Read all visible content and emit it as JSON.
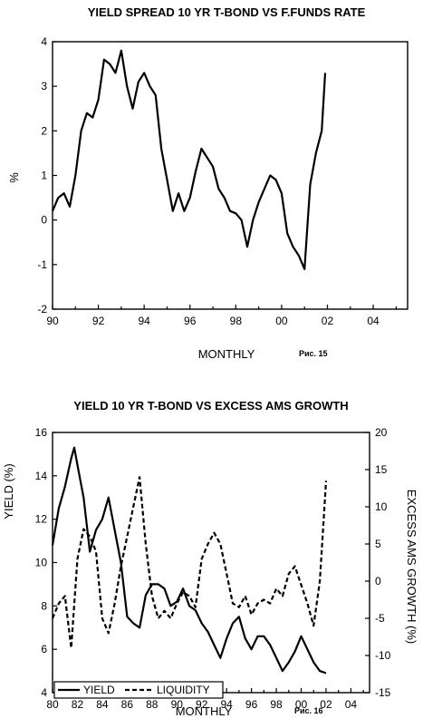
{
  "chart_data": [
    {
      "type": "line",
      "title": "YIELD SPREAD 10 YR T-BOND VS F.FUNDS RATE",
      "xlabel": "MONTHLY",
      "ylabel": "%",
      "figure_label": "Рис. 15",
      "xlim": [
        1990,
        2005.5
      ],
      "ylim": [
        -2,
        4
      ],
      "x_ticks": [
        "90",
        "92",
        "94",
        "96",
        "98",
        "00",
        "02",
        "04"
      ],
      "y_ticks": [
        "-2",
        "-1",
        "0",
        "1",
        "2",
        "3",
        "4"
      ],
      "grid": false,
      "series": [
        {
          "style": "solid",
          "x": [
            1990.0,
            1990.25,
            1990.5,
            1990.75,
            1991.0,
            1991.25,
            1991.5,
            1991.75,
            1992.0,
            1992.25,
            1992.5,
            1992.75,
            1993.0,
            1993.25,
            1993.5,
            1993.75,
            1994.0,
            1994.25,
            1994.5,
            1994.75,
            1995.0,
            1995.25,
            1995.5,
            1995.75,
            1996.0,
            1996.25,
            1996.5,
            1996.75,
            1997.0,
            1997.25,
            1997.5,
            1997.75,
            1998.0,
            1998.25,
            1998.5,
            1998.75,
            1999.0,
            1999.25,
            1999.5,
            1999.75,
            2000.0,
            2000.25,
            2000.5,
            2000.75,
            2001.0,
            2001.25,
            2001.5,
            2001.75,
            2001.9
          ],
          "y": [
            0.2,
            0.5,
            0.6,
            0.3,
            1.0,
            2.0,
            2.4,
            2.3,
            2.7,
            3.6,
            3.5,
            3.3,
            3.8,
            3.0,
            2.5,
            3.1,
            3.3,
            3.0,
            2.8,
            1.6,
            0.9,
            0.2,
            0.6,
            0.2,
            0.5,
            1.1,
            1.6,
            1.4,
            1.2,
            0.7,
            0.5,
            0.2,
            0.15,
            0.0,
            -0.6,
            0.0,
            0.4,
            0.7,
            1.0,
            0.9,
            0.6,
            -0.3,
            -0.6,
            -0.8,
            -1.1,
            0.8,
            1.5,
            2.0,
            3.3
          ]
        }
      ]
    },
    {
      "type": "line",
      "title": "YIELD 10 YR T-BOND VS EXCESS AMS GROWTH",
      "xlabel": "MONTHLY",
      "ylabel": "YIELD (%)",
      "y2label": "EXCESS AMS GROWTH (%)",
      "figure_label": "Рис. 16",
      "xlim": [
        1980,
        2005.5
      ],
      "ylim": [
        4,
        16
      ],
      "y2lim": [
        -15,
        20
      ],
      "x_ticks": [
        "80",
        "82",
        "84",
        "86",
        "88",
        "90",
        "92",
        "94",
        "96",
        "98",
        "00",
        "02",
        "04"
      ],
      "y_ticks": [
        "4",
        "6",
        "8",
        "10",
        "12",
        "14",
        "16"
      ],
      "y2_ticks": [
        "-15",
        "-10",
        "-5",
        "0",
        "5",
        "10",
        "15",
        "20"
      ],
      "legend": "bottom-left",
      "grid": false,
      "series": [
        {
          "name": "YIELD",
          "style": "solid",
          "axis": "left",
          "x": [
            1980.0,
            1980.5,
            1981.0,
            1981.5,
            1981.75,
            1982.0,
            1982.5,
            1983.0,
            1983.5,
            1984.0,
            1984.5,
            1985.0,
            1985.5,
            1986.0,
            1986.5,
            1987.0,
            1987.5,
            1988.0,
            1988.5,
            1989.0,
            1989.5,
            1990.0,
            1990.5,
            1991.0,
            1991.5,
            1992.0,
            1992.5,
            1993.0,
            1993.5,
            1994.0,
            1994.5,
            1995.0,
            1995.5,
            1996.0,
            1996.5,
            1997.0,
            1997.5,
            1998.0,
            1998.5,
            1999.0,
            1999.5,
            2000.0,
            2000.5,
            2001.0,
            2001.5,
            2002.0
          ],
          "y": [
            10.8,
            12.5,
            13.5,
            14.8,
            15.3,
            14.5,
            13.0,
            10.5,
            11.5,
            12.0,
            13.0,
            11.5,
            10.0,
            7.5,
            7.2,
            7.0,
            8.5,
            9.0,
            9.0,
            8.8,
            8.0,
            8.2,
            8.8,
            8.0,
            7.8,
            7.2,
            6.8,
            6.2,
            5.6,
            6.5,
            7.2,
            7.5,
            6.5,
            6.0,
            6.6,
            6.6,
            6.2,
            5.6,
            5.0,
            5.4,
            5.9,
            6.6,
            6.0,
            5.4,
            5.0,
            4.9
          ]
        },
        {
          "name": "LIQUIDITY",
          "style": "dashed",
          "axis": "right",
          "x": [
            1980.0,
            1980.5,
            1981.0,
            1981.5,
            1982.0,
            1982.5,
            1983.0,
            1983.5,
            1984.0,
            1984.5,
            1985.0,
            1985.5,
            1986.0,
            1986.5,
            1987.0,
            1987.5,
            1988.0,
            1988.5,
            1989.0,
            1989.5,
            1990.0,
            1990.5,
            1991.0,
            1991.5,
            1992.0,
            1992.5,
            1993.0,
            1993.5,
            1994.0,
            1994.5,
            1995.0,
            1995.5,
            1996.0,
            1996.5,
            1997.0,
            1997.5,
            1998.0,
            1998.5,
            1999.0,
            1999.5,
            2000.0,
            2000.5,
            2001.0,
            2001.5,
            2002.0
          ],
          "y": [
            -5.0,
            -3.0,
            -2.0,
            -9.0,
            3.0,
            7.0,
            6.0,
            4.0,
            -5.0,
            -7.0,
            -3.0,
            2.0,
            6.0,
            10.0,
            14.0,
            5.0,
            -2.0,
            -5.0,
            -4.0,
            -5.0,
            -3.0,
            -1.5,
            -2.0,
            -3.5,
            3.0,
            5.0,
            6.5,
            5.0,
            1.0,
            -3.0,
            -3.5,
            -2.0,
            -4.5,
            -3.0,
            -2.5,
            -3.0,
            -1.0,
            -2.0,
            1.0,
            2.0,
            -0.5,
            -3.0,
            -6.0,
            0.0,
            13.5
          ]
        }
      ]
    }
  ]
}
